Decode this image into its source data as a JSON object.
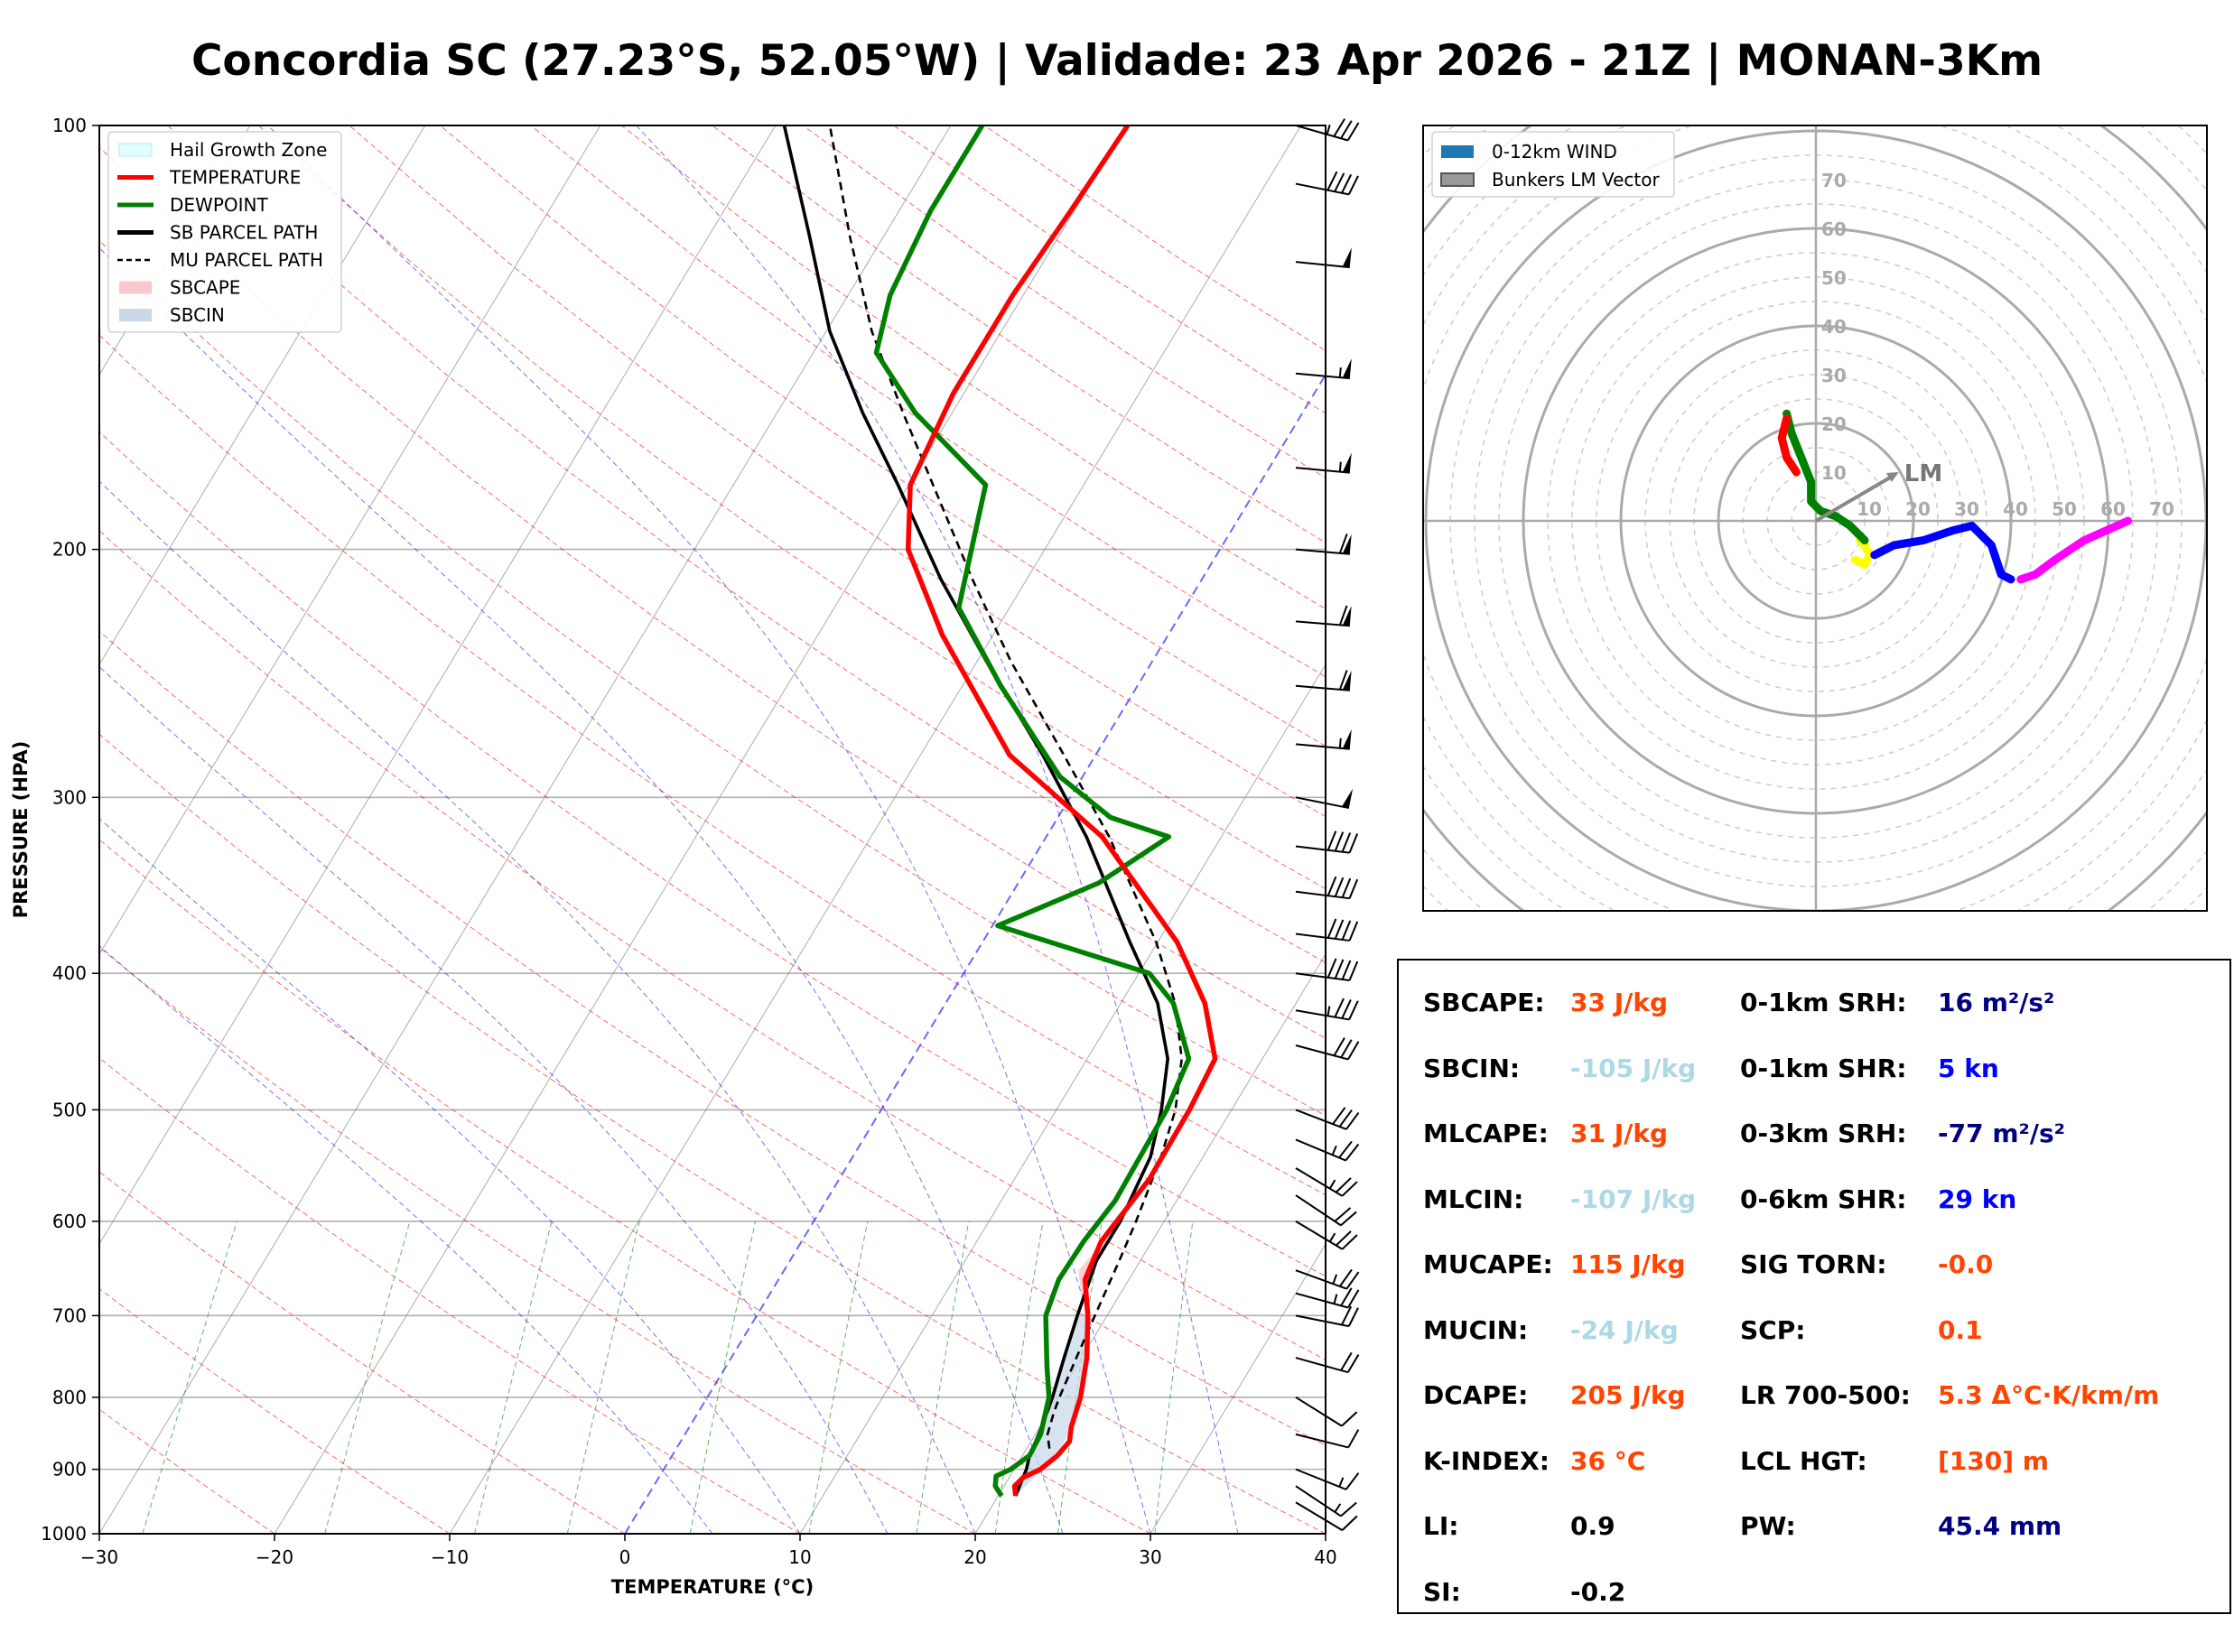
{
  "title": "Concordia SC (27.23°S, 52.05°W) | Validade: 23 Apr 2026 - 21Z | MONAN-3Km",
  "skewt": {
    "xlabel": "TEMPERATURE (°C)",
    "ylabel": "PRESSURE (HPA)",
    "xlim": [
      -30,
      40
    ],
    "ylim": [
      1000,
      100
    ],
    "y_log": true,
    "xticks": [
      -30,
      -20,
      -10,
      0,
      10,
      20,
      30,
      40
    ],
    "xtick_labels": [
      "−30",
      "−20",
      "−10",
      "0",
      "10",
      "20",
      "30",
      "40"
    ],
    "yticks": [
      1000,
      900,
      800,
      700,
      600,
      500,
      400,
      300,
      200,
      100
    ],
    "ytick_labels": [
      "1000",
      "900",
      "800",
      "700",
      "600",
      "500",
      "400",
      "300",
      "200",
      "100"
    ],
    "legend": [
      {
        "name": "Hail Growth Zone",
        "kind": "hail",
        "color": "#e0ffff"
      },
      {
        "name": "TEMPERATURE",
        "kind": "line",
        "color": "#ff0000"
      },
      {
        "name": "DEWPOINT",
        "kind": "line",
        "color": "#008000"
      },
      {
        "name": "SB PARCEL PATH",
        "kind": "line",
        "color": "#000000"
      },
      {
        "name": "MU PARCEL PATH",
        "kind": "dash",
        "color": "#000000"
      },
      {
        "name": "SBCAPE",
        "kind": "fill",
        "color": "#f9c8cc"
      },
      {
        "name": "SBCIN",
        "kind": "fill",
        "color": "#c9d9e8"
      }
    ],
    "legend_loc": "upper-left",
    "colors": {
      "temperature": "#ff0000",
      "dewpoint": "#008000",
      "parcel": "#000000",
      "cape": "#f9c8cc",
      "cin": "#c9d9e8",
      "dry_adiabat": "#ff0000",
      "moist_adiabat": "#0000ff",
      "mixing_ratio": "#008000",
      "isotherm": "#808080",
      "zero_isotherm": "#4444ff"
    }
  },
  "chart_data": [
    {
      "type": "line",
      "name": "skew-t",
      "skew_deg_per_decade": 48.6,
      "temperature": [
        [
          940,
          21
        ],
        [
          925,
          20.6
        ],
        [
          912,
          20.8
        ],
        [
          900,
          21.5
        ],
        [
          880,
          22
        ],
        [
          860,
          22.2
        ],
        [
          840,
          21.8
        ],
        [
          800,
          21.3
        ],
        [
          750,
          20.3
        ],
        [
          700,
          18.9
        ],
        [
          660,
          17.5
        ],
        [
          620,
          17.1
        ],
        [
          560,
          17.7
        ],
        [
          500,
          17.6
        ],
        [
          460,
          17.3
        ],
        [
          420,
          14.8
        ],
        [
          380,
          11.1
        ],
        [
          320,
          3.2
        ],
        [
          280,
          -4.9
        ],
        [
          230,
          -12.9
        ],
        [
          200,
          -17.8
        ],
        [
          180,
          -19.9
        ],
        [
          155,
          -20.6
        ],
        [
          132,
          -20.6
        ],
        [
          115,
          -20.2
        ],
        [
          100,
          -19.9
        ]
      ],
      "dewpoint": [
        [
          940,
          20.2
        ],
        [
          925,
          19.5
        ],
        [
          910,
          19.2
        ],
        [
          900,
          19.8
        ],
        [
          880,
          20.4
        ],
        [
          850,
          20.3
        ],
        [
          800,
          19.5
        ],
        [
          760,
          18.3
        ],
        [
          700,
          16.5
        ],
        [
          660,
          16
        ],
        [
          620,
          16.1
        ],
        [
          580,
          16.5
        ],
        [
          500,
          16.3
        ],
        [
          460,
          15.8
        ],
        [
          420,
          13
        ],
        [
          400,
          10.6
        ],
        [
          370,
          0.3
        ],
        [
          345,
          4.6
        ],
        [
          320,
          7
        ],
        [
          310,
          3
        ],
        [
          290,
          -1.3
        ],
        [
          250,
          -7.8
        ],
        [
          220,
          -12.9
        ],
        [
          180,
          -15.6
        ],
        [
          160,
          -22.1
        ],
        [
          145,
          -26.4
        ],
        [
          132,
          -27.6
        ],
        [
          115,
          -28.2
        ],
        [
          100,
          -28.2
        ]
      ],
      "sb_parcel": [
        [
          940,
          21
        ],
        [
          900,
          20.7
        ],
        [
          880,
          20.4
        ],
        [
          850,
          20.2
        ],
        [
          800,
          19.7
        ],
        [
          750,
          19
        ],
        [
          700,
          18.3
        ],
        [
          640,
          17.5
        ],
        [
          600,
          17.5
        ],
        [
          540,
          17
        ],
        [
          500,
          16
        ],
        [
          460,
          14.6
        ],
        [
          420,
          12.1
        ],
        [
          380,
          8.4
        ],
        [
          320,
          2.3
        ],
        [
          280,
          -3
        ],
        [
          240,
          -9.5
        ],
        [
          210,
          -14.9
        ],
        [
          180,
          -20.6
        ],
        [
          160,
          -25.1
        ],
        [
          140,
          -29.8
        ],
        [
          120,
          -34.2
        ],
        [
          100,
          -39.5
        ]
      ],
      "mu_parcel": [
        [
          870,
          21.3
        ],
        [
          850,
          20.7
        ],
        [
          820,
          20.3
        ],
        [
          800,
          20.1
        ],
        [
          750,
          19.7
        ],
        [
          700,
          19.3
        ],
        [
          640,
          18.8
        ],
        [
          600,
          18.4
        ],
        [
          540,
          17.6
        ],
        [
          500,
          16.8
        ],
        [
          460,
          15.4
        ],
        [
          420,
          13.1
        ],
        [
          380,
          9.9
        ],
        [
          320,
          3.6
        ],
        [
          280,
          -1.8
        ],
        [
          240,
          -8.1
        ],
        [
          210,
          -13.1
        ],
        [
          180,
          -18.6
        ],
        [
          160,
          -22.8
        ],
        [
          140,
          -27.4
        ],
        [
          120,
          -31.9
        ],
        [
          100,
          -36.9
        ]
      ],
      "cape_region": [
        [
          600,
          17.5
        ],
        [
          650,
          17.5
        ],
        [
          690,
          18.3
        ],
        [
          650,
          16.8
        ]
      ],
      "cin_region": [
        [
          940,
          21
        ],
        [
          880,
          22
        ],
        [
          840,
          21.8
        ],
        [
          800,
          21.3
        ],
        [
          750,
          20.3
        ],
        [
          700,
          18.9
        ],
        [
          700,
          18.3
        ],
        [
          750,
          19
        ],
        [
          800,
          19.7
        ],
        [
          850,
          20.2
        ],
        [
          900,
          20.7
        ],
        [
          940,
          21
        ]
      ],
      "wind_barbs": [
        {
          "p": 950,
          "u": -10,
          "v": 6
        },
        {
          "p": 925,
          "u": -12,
          "v": 8
        },
        {
          "p": 900,
          "u": -15,
          "v": 6
        },
        {
          "p": 850,
          "u": -12,
          "v": 3
        },
        {
          "p": 800,
          "u": -8,
          "v": 5
        },
        {
          "p": 750,
          "u": -18,
          "v": 5
        },
        {
          "p": 700,
          "u": -20,
          "v": 4
        },
        {
          "p": 675,
          "u": -22,
          "v": 6
        },
        {
          "p": 650,
          "u": -22,
          "v": 8
        },
        {
          "p": 600,
          "u": -20,
          "v": 12
        },
        {
          "p": 575,
          "u": -18,
          "v": 12
        },
        {
          "p": 550,
          "u": -20,
          "v": 12
        },
        {
          "p": 525,
          "u": -24,
          "v": 10
        },
        {
          "p": 500,
          "u": -26,
          "v": 10
        },
        {
          "p": 450,
          "u": -30,
          "v": 8
        },
        {
          "p": 425,
          "u": -35,
          "v": 6
        },
        {
          "p": 400,
          "u": -38,
          "v": 5
        },
        {
          "p": 375,
          "u": -40,
          "v": 5
        },
        {
          "p": 350,
          "u": -40,
          "v": 5
        },
        {
          "p": 325,
          "u": -42,
          "v": 5
        },
        {
          "p": 300,
          "u": -50,
          "v": 10
        },
        {
          "p": 275,
          "u": -55,
          "v": 5
        },
        {
          "p": 250,
          "u": -60,
          "v": 5
        },
        {
          "p": 225,
          "u": -62,
          "v": 5
        },
        {
          "p": 200,
          "u": -58,
          "v": 5
        },
        {
          "p": 175,
          "u": -55,
          "v": 5
        },
        {
          "p": 150,
          "u": -55,
          "v": 5
        },
        {
          "p": 125,
          "u": -50,
          "v": 5
        },
        {
          "p": 110,
          "u": -40,
          "v": 8
        },
        {
          "p": 100,
          "u": -35,
          "v": 10
        }
      ]
    },
    {
      "type": "line",
      "name": "hodograph",
      "rlim": 80,
      "rings": [
        10,
        20,
        30,
        40,
        50,
        60,
        70
      ],
      "ring_labels": [
        "10",
        "20",
        "30",
        "40",
        "50",
        "60",
        "70"
      ],
      "legend": [
        {
          "name": "0-12km WIND",
          "kind": "patch",
          "color": "#1f77b4"
        },
        {
          "name": "Bunkers LM Vector",
          "kind": "patch",
          "color": "#999999"
        }
      ],
      "lm_label": "LM",
      "lm_vector": [
        17,
        10
      ],
      "segments": [
        {
          "color": "#ffff00",
          "points": [
            [
              8,
              -8
            ],
            [
              10,
              -9
            ],
            [
              11,
              -7
            ],
            [
              10,
              -5
            ],
            [
              9,
              -4
            ]
          ]
        },
        {
          "color": "#0000ff",
          "points": [
            [
              12,
              -7
            ],
            [
              16,
              -5
            ],
            [
              22,
              -4
            ],
            [
              28,
              -2
            ],
            [
              32,
              -1
            ],
            [
              36,
              -5
            ],
            [
              38,
              -11
            ],
            [
              40,
              -12
            ]
          ]
        },
        {
          "color": "#ff00ff",
          "points": [
            [
              42,
              -12
            ],
            [
              45,
              -11
            ],
            [
              49,
              -8
            ],
            [
              55,
              -4
            ],
            [
              64,
              0
            ]
          ]
        },
        {
          "color": "#008000",
          "points": [
            [
              10,
              -4
            ],
            [
              7,
              -1
            ],
            [
              4,
              1
            ],
            [
              1,
              2
            ],
            [
              -1,
              4
            ],
            [
              -1,
              8
            ],
            [
              -3,
              13
            ],
            [
              -5,
              18
            ],
            [
              -6,
              22
            ]
          ]
        },
        {
          "color": "#ff0000",
          "points": [
            [
              -6,
              21
            ],
            [
              -7,
              17
            ],
            [
              -6,
              13
            ],
            [
              -4,
              10
            ]
          ]
        }
      ]
    }
  ],
  "indices": {
    "col1": [
      {
        "label": "SBCAPE:",
        "value": "33 J/kg",
        "color": "#ff4500"
      },
      {
        "label": "SBCIN:",
        "value": "-105 J/kg",
        "color": "#add8e6"
      },
      {
        "label": "MLCAPE:",
        "value": "31 J/kg",
        "color": "#ff4500"
      },
      {
        "label": "MLCIN:",
        "value": "-107 J/kg",
        "color": "#add8e6"
      },
      {
        "label": "MUCAPE:",
        "value": "115 J/kg",
        "color": "#ff4500"
      },
      {
        "label": "MUCIN:",
        "value": "-24 J/kg",
        "color": "#add8e6"
      },
      {
        "label": "DCAPE:",
        "value": "205 J/kg",
        "color": "#ff4500"
      },
      {
        "label": "K-INDEX:",
        "value": "36 °C",
        "color": "#ff4500"
      },
      {
        "label": "LI:",
        "value": "0.9",
        "color": "#000000"
      },
      {
        "label": "SI:",
        "value": "-0.2",
        "color": "#000000"
      }
    ],
    "col2": [
      {
        "label": "0-1km SRH:",
        "value": "16 m²/s²",
        "color": "#000080"
      },
      {
        "label": "0-1km SHR:",
        "value": "5 kn",
        "color": "#0000ff"
      },
      {
        "label": "0-3km SRH:",
        "value": "-77 m²/s²",
        "color": "#000080"
      },
      {
        "label": "0-6km SHR:",
        "value": "29 kn",
        "color": "#0000ff"
      },
      {
        "label": "SIG TORN:",
        "value": "-0.0",
        "color": "#ff4500"
      },
      {
        "label": "SCP:",
        "value": "0.1",
        "color": "#ff4500"
      },
      {
        "label": "LR 700-500:",
        "value": "5.3 Δ°C·K/km/m",
        "color": "#ff4500"
      },
      {
        "label": "LCL HGT:",
        "value": "[130] m",
        "color": "#ff4500"
      },
      {
        "label": "PW:",
        "value": "45.4 mm",
        "color": "#000080"
      }
    ]
  }
}
